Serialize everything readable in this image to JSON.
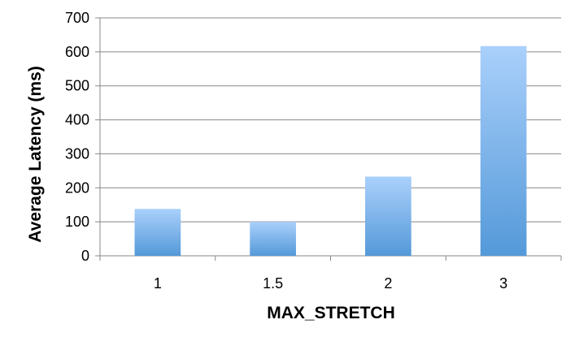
{
  "chart_data": {
    "type": "bar",
    "title": "",
    "xlabel": "MAX_STRETCH",
    "ylabel": "Average Latency (ms)",
    "categories": [
      "1",
      "1.5",
      "2",
      "3"
    ],
    "values": [
      138,
      100,
      233,
      617
    ],
    "ylim": [
      0,
      700
    ],
    "yticks": [
      "0",
      "100",
      "200",
      "300",
      "400",
      "500",
      "600",
      "700"
    ],
    "grid": true,
    "legend": "none",
    "colors": {
      "bar_top": "#aad0fb",
      "bar_bottom": "#5499d9",
      "gridline": "#888888"
    }
  }
}
